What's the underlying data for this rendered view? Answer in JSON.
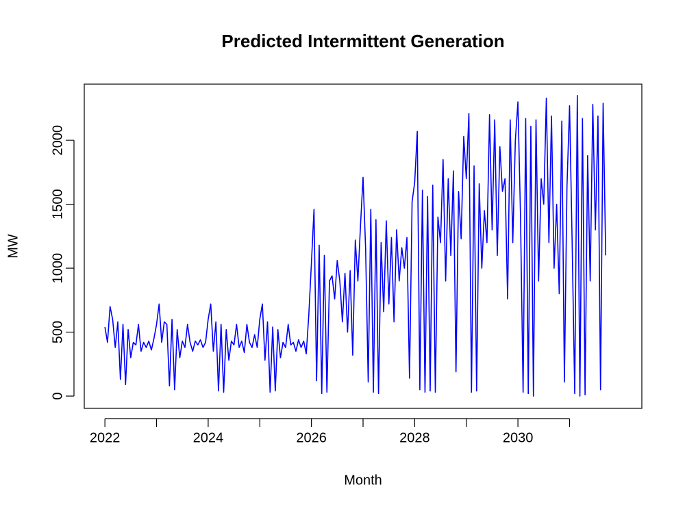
{
  "chart_data": {
    "type": "line",
    "title": "Predicted Intermittent Generation",
    "x_label": "Month",
    "y_label": "MW",
    "color": "#0000ff",
    "xlim": [
      2021.6,
      2032.4
    ],
    "xticks": [
      2022,
      2024,
      2026,
      2028,
      2030
    ],
    "xminor_ticks": [
      2023,
      2025,
      2027,
      2029,
      2031
    ],
    "ylim": [
      -96,
      2439
    ],
    "yticks": [
      0,
      500,
      1000,
      1500,
      2000
    ],
    "x": [
      2022,
      2022.05,
      2022.1,
      2022.15,
      2022.2,
      2022.25,
      2022.3,
      2022.35,
      2022.4,
      2022.45,
      2022.5,
      2022.55,
      2022.6,
      2022.65,
      2022.7,
      2022.75,
      2022.8,
      2022.85,
      2022.9,
      2022.95,
      2023,
      2023.05,
      2023.1,
      2023.15,
      2023.2,
      2023.25,
      2023.3,
      2023.35,
      2023.4,
      2023.45,
      2023.5,
      2023.55,
      2023.6,
      2023.65,
      2023.7,
      2023.75,
      2023.8,
      2023.85,
      2023.9,
      2023.95,
      2024,
      2024.05,
      2024.1,
      2024.15,
      2024.2,
      2024.25,
      2024.3,
      2024.35,
      2024.4,
      2024.45,
      2024.5,
      2024.55,
      2024.6,
      2024.65,
      2024.7,
      2024.75,
      2024.8,
      2024.85,
      2024.9,
      2024.95,
      2025,
      2025.05,
      2025.1,
      2025.15,
      2025.2,
      2025.25,
      2025.3,
      2025.35,
      2025.4,
      2025.45,
      2025.5,
      2025.55,
      2025.6,
      2025.65,
      2025.7,
      2025.75,
      2025.8,
      2025.85,
      2025.9,
      2025.95,
      2026,
      2026.05,
      2026.1,
      2026.15,
      2026.2,
      2026.25,
      2026.3,
      2026.35,
      2026.4,
      2026.45,
      2026.5,
      2026.55,
      2026.6,
      2026.65,
      2026.7,
      2026.75,
      2026.8,
      2026.85,
      2026.9,
      2026.95,
      2027,
      2027.05,
      2027.1,
      2027.15,
      2027.2,
      2027.25,
      2027.3,
      2027.35,
      2027.4,
      2027.45,
      2027.5,
      2027.55,
      2027.6,
      2027.65,
      2027.7,
      2027.75,
      2027.8,
      2027.85,
      2027.9,
      2027.95,
      2028,
      2028.05,
      2028.1,
      2028.15,
      2028.2,
      2028.25,
      2028.3,
      2028.35,
      2028.4,
      2028.45,
      2028.5,
      2028.55,
      2028.6,
      2028.65,
      2028.7,
      2028.75,
      2028.8,
      2028.85,
      2028.9,
      2028.95,
      2029,
      2029.05,
      2029.1,
      2029.15,
      2029.2,
      2029.25,
      2029.3,
      2029.35,
      2029.4,
      2029.45,
      2029.5,
      2029.55,
      2029.6,
      2029.65,
      2029.7,
      2029.75,
      2029.8,
      2029.85,
      2029.9,
      2029.95,
      2030,
      2030.05,
      2030.1,
      2030.15,
      2030.2,
      2030.25,
      2030.3,
      2030.35,
      2030.4,
      2030.45,
      2030.5,
      2030.55,
      2030.6,
      2030.65,
      2030.7,
      2030.75,
      2030.8,
      2030.85,
      2030.9,
      2030.95,
      2031,
      2031.05,
      2031.1,
      2031.15,
      2031.2,
      2031.25,
      2031.3,
      2031.35,
      2031.4,
      2031.45,
      2031.5,
      2031.55,
      2031.6,
      2031.65,
      2031.7
    ],
    "values": [
      540,
      420,
      700,
      600,
      380,
      580,
      130,
      560,
      90,
      520,
      300,
      420,
      400,
      560,
      350,
      420,
      380,
      430,
      360,
      450,
      560,
      720,
      420,
      580,
      560,
      80,
      600,
      50,
      520,
      300,
      430,
      380,
      560,
      420,
      350,
      430,
      400,
      440,
      380,
      420,
      600,
      720,
      350,
      580,
      40,
      560,
      30,
      520,
      280,
      430,
      400,
      560,
      380,
      430,
      340,
      560,
      420,
      380,
      480,
      380,
      600,
      720,
      280,
      580,
      30,
      540,
      40,
      520,
      300,
      420,
      380,
      560,
      400,
      420,
      350,
      440,
      380,
      430,
      330,
      640,
      1040,
      1460,
      120,
      1180,
      20,
      1100,
      30,
      900,
      940,
      760,
      1060,
      900,
      580,
      960,
      500,
      980,
      320,
      1220,
      900,
      1330,
      1710,
      1150,
      110,
      1460,
      30,
      1380,
      20,
      1200,
      660,
      1370,
      720,
      1240,
      580,
      1300,
      900,
      1160,
      1000,
      1240,
      140,
      1520,
      1670,
      2070,
      50,
      1610,
      30,
      1560,
      40,
      1650,
      30,
      1400,
      1200,
      1850,
      900,
      1700,
      1100,
      1760,
      190,
      1600,
      1230,
      2030,
      1700,
      2210,
      30,
      1800,
      40,
      1660,
      1000,
      1450,
      1200,
      2200,
      1300,
      2160,
      1100,
      1950,
      1600,
      1700,
      760,
      2160,
      1200,
      2000,
      2300,
      1400,
      30,
      2170,
      20,
      2110,
      0,
      2160,
      900,
      1700,
      1500,
      2330,
      1200,
      2190,
      1000,
      1500,
      800,
      2150,
      110,
      1640,
      2270,
      1200,
      20,
      2350,
      0,
      2170,
      10,
      1880,
      900,
      2280,
      1300,
      2190,
      50,
      2290,
      1100
    ]
  }
}
